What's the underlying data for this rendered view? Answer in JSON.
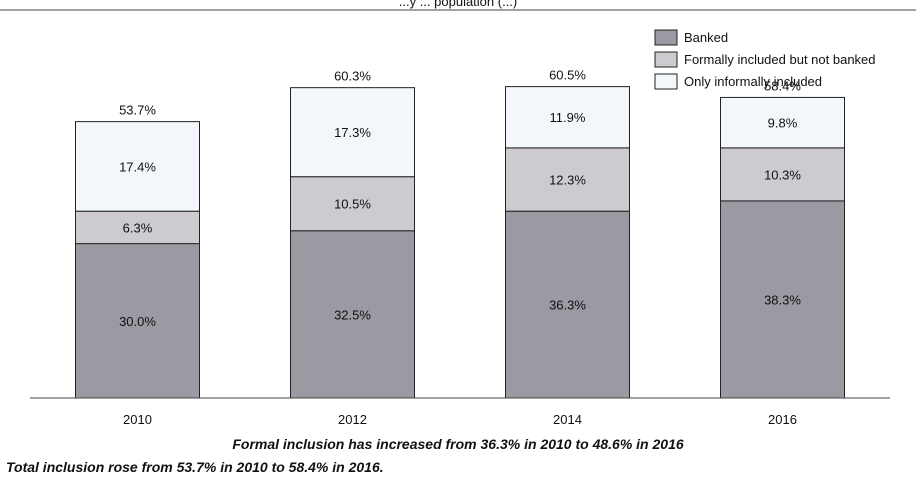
{
  "chart_data": {
    "type": "bar",
    "stacked": true,
    "title": "...y ... population (...)",
    "categories": [
      "2010",
      "2012",
      "2014",
      "2016"
    ],
    "series": [
      {
        "name": "Banked",
        "values": [
          30.0,
          32.5,
          36.3,
          38.3
        ],
        "labels": [
          "30.0%",
          "32.5%",
          "36.3%",
          "38.3%"
        ],
        "color": "#9b9aa3"
      },
      {
        "name": "Formally included but not banked",
        "values": [
          6.3,
          10.5,
          12.3,
          10.3
        ],
        "labels": [
          "6.3%",
          "10.5%",
          "12.3%",
          "10.3%"
        ],
        "color": "#cdcbd0"
      },
      {
        "name": "Only informally included",
        "values": [
          17.4,
          17.3,
          11.9,
          9.8
        ],
        "labels": [
          "17.4%",
          "17.3%",
          "11.9%",
          "9.8%"
        ],
        "color": "#f3f6fb"
      }
    ],
    "totals": [
      53.7,
      60.3,
      60.5,
      58.4
    ],
    "total_labels": [
      "53.7%",
      "60.3%",
      "60.5%",
      "58.4%"
    ],
    "ylim": [
      0,
      75
    ],
    "grid": false,
    "legend_position": "top-right",
    "notes": [
      "Formal inclusion has increased from 36.3% in 2010 to 48.6% in 2016",
      "Total inclusion rose from 53.7% in 2010 to 58.4% in 2016."
    ]
  }
}
